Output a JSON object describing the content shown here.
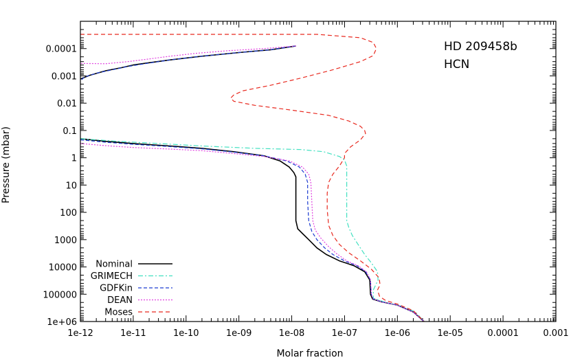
{
  "chart_data": {
    "type": "line",
    "title": "",
    "annotations": [
      "HD 209458b",
      "HCN"
    ],
    "xlabel": "Molar fraction",
    "ylabel": "Pressure (mbar)",
    "xscale": "log",
    "yscale": "log",
    "y_inverted": true,
    "xlim": [
      1e-12,
      0.001
    ],
    "ylim": [
      1e-05,
      1000000
    ],
    "xticks": [
      {
        "value": 1e-12,
        "label": "1e-12"
      },
      {
        "value": 1e-11,
        "label": "1e-11"
      },
      {
        "value": 1e-10,
        "label": "1e-10"
      },
      {
        "value": 1e-09,
        "label": "1e-09"
      },
      {
        "value": 1e-08,
        "label": "1e-08"
      },
      {
        "value": 1e-07,
        "label": "1e-07"
      },
      {
        "value": 1e-06,
        "label": "1e-06"
      },
      {
        "value": 1e-05,
        "label": "1e-05"
      },
      {
        "value": 0.0001,
        "label": "0.0001"
      },
      {
        "value": 0.001,
        "label": "0.001"
      }
    ],
    "yticks": [
      {
        "value": 0.0001,
        "label": "0.0001"
      },
      {
        "value": 0.001,
        "label": "0.001"
      },
      {
        "value": 0.01,
        "label": "0.01"
      },
      {
        "value": 0.1,
        "label": "0.1"
      },
      {
        "value": 1,
        "label": "1"
      },
      {
        "value": 10,
        "label": "10"
      },
      {
        "value": 100,
        "label": "100"
      },
      {
        "value": 1000,
        "label": "1000"
      },
      {
        "value": 10000,
        "label": "10000"
      },
      {
        "value": 100000,
        "label": "100000"
      },
      {
        "value": 1000000,
        "label": "1e+06"
      }
    ],
    "legend_position": "bottom-left",
    "series": [
      {
        "name": "Nominal",
        "color": "#000000",
        "dash": "",
        "width": 1.6,
        "points": [
          [
            1.2e-08,
            8e-05
          ],
          [
            4e-09,
            0.00011
          ],
          [
            1e-09,
            0.00014
          ],
          [
            2e-10,
            0.00019
          ],
          [
            5e-11,
            0.00026
          ],
          [
            2e-11,
            0.00033
          ],
          [
            1e-11,
            0.0004
          ],
          [
            6e-12,
            0.0005
          ],
          [
            3e-12,
            0.00065
          ],
          [
            1.5e-12,
            0.00095
          ],
          [
            1e-12,
            0.0013
          ],
          null,
          [
            1e-12,
            0.2
          ],
          [
            3e-12,
            0.25
          ],
          [
            1e-11,
            0.3
          ],
          [
            5e-11,
            0.37
          ],
          [
            2e-10,
            0.45
          ],
          [
            8e-10,
            0.6
          ],
          [
            3e-09,
            0.85
          ],
          [
            6e-09,
            1.3
          ],
          [
            9e-09,
            2.2
          ],
          [
            1.1e-08,
            3.5
          ],
          [
            1.2e-08,
            5
          ],
          [
            1.2e-08,
            30
          ],
          [
            1.2e-08,
            200
          ],
          [
            1.3e-08,
            400
          ],
          [
            1.6e-08,
            600
          ],
          [
            2.1e-08,
            1000
          ],
          [
            3e-08,
            2000
          ],
          [
            4.5e-08,
            3500
          ],
          [
            8e-08,
            6000
          ],
          [
            1.5e-07,
            9000
          ],
          [
            2.4e-07,
            15000
          ],
          [
            3e-07,
            30000
          ],
          [
            3.1e-07,
            100000
          ],
          [
            3.4e-07,
            150000
          ],
          [
            5e-07,
            190000
          ],
          [
            1e-06,
            250000
          ],
          [
            2e-06,
            450000
          ],
          [
            3.2e-06,
            1000000
          ]
        ]
      },
      {
        "name": "GRIMECH",
        "color": "#40e0c0",
        "dash": "7,3,2,3",
        "width": 1.2,
        "points": [
          [
            1e-12,
            0.2
          ],
          [
            5e-12,
            0.25
          ],
          [
            3e-11,
            0.3
          ],
          [
            2e-10,
            0.37
          ],
          [
            2e-09,
            0.45
          ],
          [
            1.5e-08,
            0.5
          ],
          [
            4e-08,
            0.6
          ],
          [
            8e-08,
            0.9
          ],
          [
            1e-07,
            1.2
          ],
          [
            1.1e-07,
            2
          ],
          [
            1.1e-07,
            30
          ],
          [
            1.1e-07,
            200
          ],
          [
            1.2e-07,
            350
          ],
          [
            1.4e-07,
            700
          ],
          [
            1.8e-07,
            1500
          ],
          [
            2.4e-07,
            3500
          ],
          [
            3.2e-07,
            7000
          ],
          [
            4.2e-07,
            15000
          ],
          [
            4.3e-07,
            30000
          ],
          [
            3.5e-07,
            70000
          ],
          [
            3.5e-07,
            140000
          ],
          [
            6e-07,
            200000
          ],
          [
            1.2e-06,
            270000
          ],
          [
            2.2e-06,
            450000
          ],
          [
            3.2e-06,
            1000000
          ]
        ]
      },
      {
        "name": "GDFKin",
        "color": "#1a3ad0",
        "dash": "5,3",
        "width": 1.2,
        "points": [
          [
            1.2e-08,
            8e-05
          ],
          [
            4e-09,
            0.00011
          ],
          [
            1e-09,
            0.00014
          ],
          [
            2e-10,
            0.00019
          ],
          [
            5e-11,
            0.00026
          ],
          [
            1.8e-11,
            0.00035
          ],
          [
            8e-12,
            0.00045
          ],
          [
            4e-12,
            0.0006
          ],
          [
            2e-12,
            0.0008
          ],
          [
            1.2e-12,
            0.0011
          ],
          [
            1e-12,
            0.0015
          ],
          null,
          [
            1e-12,
            0.22
          ],
          [
            3e-12,
            0.27
          ],
          [
            1e-11,
            0.32
          ],
          [
            5e-11,
            0.39
          ],
          [
            2e-10,
            0.47
          ],
          [
            8e-10,
            0.62
          ],
          [
            3e-09,
            0.85
          ],
          [
            8e-09,
            1.3
          ],
          [
            1.4e-08,
            2.2
          ],
          [
            1.8e-08,
            4
          ],
          [
            2e-08,
            8
          ],
          [
            2e-08,
            40
          ],
          [
            2.1e-08,
            200
          ],
          [
            2.4e-08,
            500
          ],
          [
            3e-08,
            1000
          ],
          [
            4.2e-08,
            2000
          ],
          [
            6e-08,
            3500
          ],
          [
            1e-07,
            6000
          ],
          [
            1.7e-07,
            9000
          ],
          [
            2.5e-07,
            15000
          ],
          [
            3.1e-07,
            30000
          ],
          [
            3.2e-07,
            100000
          ],
          [
            3.5e-07,
            150000
          ],
          [
            5e-07,
            190000
          ],
          [
            1e-06,
            250000
          ],
          [
            2e-06,
            450000
          ],
          [
            3.2e-06,
            1000000
          ]
        ]
      },
      {
        "name": "DEAN",
        "color": "#e040e0",
        "dash": "2,2",
        "width": 1.2,
        "points": [
          [
            1.2e-08,
            8e-05
          ],
          [
            3e-09,
            0.0001
          ],
          [
            6e-10,
            0.00012
          ],
          [
            1.5e-10,
            0.00015
          ],
          [
            5e-11,
            0.00019
          ],
          [
            2e-11,
            0.00024
          ],
          [
            8e-12,
            0.0003
          ],
          [
            3e-12,
            0.00036
          ],
          [
            1e-12,
            0.00035
          ],
          null,
          [
            1e-12,
            0.3
          ],
          [
            3e-12,
            0.36
          ],
          [
            1e-11,
            0.42
          ],
          [
            5e-11,
            0.48
          ],
          [
            2e-10,
            0.55
          ],
          [
            8e-10,
            0.7
          ],
          [
            3e-09,
            0.9
          ],
          [
            9e-09,
            1.3
          ],
          [
            1.6e-08,
            2.2
          ],
          [
            2.1e-08,
            4
          ],
          [
            2.3e-08,
            8
          ],
          [
            2.4e-08,
            40
          ],
          [
            2.5e-08,
            200
          ],
          [
            2.8e-08,
            450
          ],
          [
            3.6e-08,
            900
          ],
          [
            5e-08,
            1800
          ],
          [
            7e-08,
            3200
          ],
          [
            1.1e-07,
            6000
          ],
          [
            1.8e-07,
            9000
          ],
          [
            2.6e-07,
            15000
          ],
          [
            3.1e-07,
            30000
          ],
          [
            3.2e-07,
            100000
          ],
          [
            3.5e-07,
            150000
          ],
          [
            5e-07,
            190000
          ],
          [
            1e-06,
            250000
          ],
          [
            2e-06,
            450000
          ],
          [
            3.2e-06,
            1000000
          ]
        ]
      },
      {
        "name": "Moses",
        "color": "#e8281e",
        "dash": "6,4",
        "width": 1.2,
        "points": [
          [
            1e-12,
            3e-05
          ],
          [
            1e-11,
            3e-05
          ],
          [
            1e-10,
            3e-05
          ],
          [
            1e-09,
            3e-05
          ],
          [
            3e-08,
            3e-05
          ],
          [
            2e-07,
            4e-05
          ],
          [
            3.5e-07,
            6e-05
          ],
          [
            4e-07,
            0.0001
          ],
          [
            3.5e-07,
            0.00018
          ],
          [
            2e-07,
            0.0003
          ],
          [
            6e-08,
            0.0006
          ],
          [
            1.5e-08,
            0.0012
          ],
          [
            4e-09,
            0.0022
          ],
          [
            1.2e-09,
            0.0035
          ],
          [
            8e-10,
            0.005
          ],
          [
            7e-10,
            0.0065
          ],
          [
            8e-10,
            0.0085
          ],
          [
            2e-09,
            0.012
          ],
          [
            1e-08,
            0.018
          ],
          [
            5e-08,
            0.028
          ],
          [
            1.2e-07,
            0.045
          ],
          [
            2e-07,
            0.07
          ],
          [
            2.4e-07,
            0.1
          ],
          [
            2.5e-07,
            0.13
          ],
          [
            2e-07,
            0.22
          ],
          [
            1.3e-07,
            0.4
          ],
          [
            1e-07,
            0.7
          ],
          [
            1e-07,
            1
          ],
          [
            8e-08,
            2
          ],
          [
            6e-08,
            4
          ],
          [
            5e-08,
            8
          ],
          [
            4.7e-08,
            20
          ],
          [
            4.7e-08,
            80
          ],
          [
            5e-08,
            300
          ],
          [
            6e-08,
            700
          ],
          [
            8e-08,
            1500
          ],
          [
            1.2e-07,
            3000
          ],
          [
            2e-07,
            6000
          ],
          [
            3.2e-07,
            12000
          ],
          [
            4.5e-07,
            25000
          ],
          [
            4.7e-07,
            45000
          ],
          [
            4.2e-07,
            70000
          ],
          [
            4.6e-07,
            120000
          ],
          [
            6e-07,
            170000
          ],
          [
            1e-06,
            230000
          ],
          [
            2e-06,
            400000
          ],
          [
            3.2e-06,
            1000000
          ]
        ]
      }
    ]
  }
}
